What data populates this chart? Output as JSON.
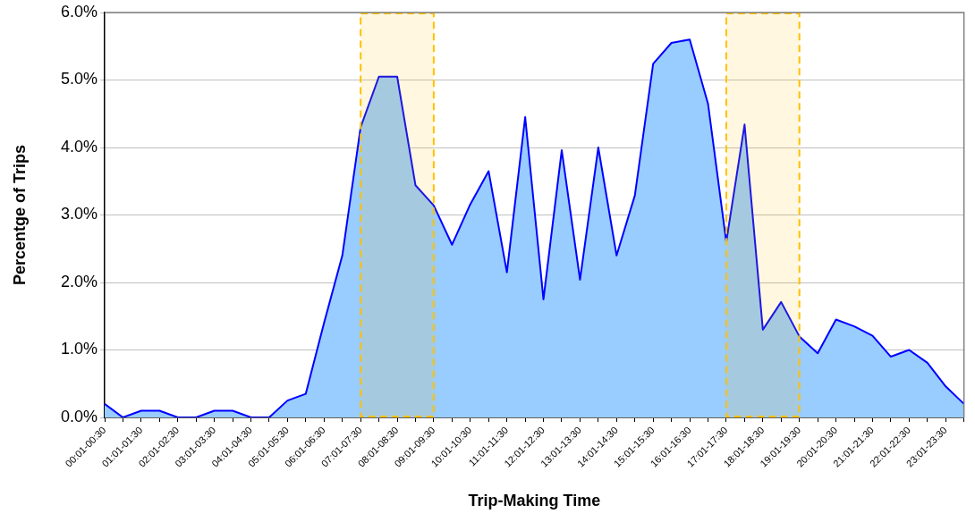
{
  "chart_data": {
    "type": "area",
    "xlabel": "Trip-Making Time",
    "ylabel": "Percentge of Trips",
    "categories": [
      "00:01-00:30",
      null,
      "01:01-01:30",
      null,
      "02:01-02:30",
      null,
      "03:01-03:30",
      null,
      "04:01-04:30",
      null,
      "05:01-05:30",
      null,
      "06:01-06:30",
      null,
      "07:01-07:30",
      null,
      "08:01-08:30",
      null,
      "09:01-09:30",
      null,
      "10:01-10:30",
      null,
      "11:01-11:30",
      null,
      "12:01-12:30",
      null,
      "13:01-13:30",
      null,
      "14:01-14:30",
      null,
      "15:01-15:30",
      null,
      "16:01-16:30",
      null,
      "17:01-17:30",
      null,
      "18:01-18:30",
      null,
      "19:01-19:30",
      null,
      "20:01-20:30",
      null,
      "21:01-21:30",
      null,
      "22:01-22:30",
      null,
      "23:01-23:30",
      null
    ],
    "series": [
      {
        "color": "#0000ff",
        "values": [
          0.2,
          0,
          0.1,
          0.1,
          0,
          0,
          0.1,
          0.1,
          0,
          0,
          0.25,
          0.35,
          1.4,
          2.4,
          4.3,
          5.05,
          5.05,
          3.44,
          3.14,
          2.56,
          3.16,
          3.65,
          2.15,
          4.45,
          1.75,
          3.96,
          2.04,
          4.0,
          2.4,
          3.29,
          5.24,
          5.55,
          5.6,
          4.65,
          2.6,
          4.34,
          1.3,
          1.71,
          1.2,
          0.95,
          1.45,
          1.35,
          1.21,
          0.9,
          1.0,
          0.81,
          0.46,
          0.2
        ]
      }
    ],
    "ylim": [
      0,
      6
    ],
    "yticks": [
      {
        "value": 0,
        "label": "0.0%"
      },
      {
        "value": 1,
        "label": "1.0%"
      },
      {
        "value": 2,
        "label": "2.0%"
      },
      {
        "value": 3,
        "label": "3.0%"
      },
      {
        "value": 4,
        "label": "4.0%"
      },
      {
        "value": 5,
        "label": "5.0%"
      },
      {
        "value": 6,
        "label": "6.0%"
      }
    ],
    "bands": [
      {
        "axis": "x",
        "from": "07:01-07:30",
        "to": "09:01-09:30",
        "color": "#ffc000"
      },
      {
        "axis": "x",
        "from": "17:01-17:30",
        "to": "19:01-19:30",
        "color": "#ffc000"
      }
    ],
    "grid": "y",
    "legend": false,
    "marker": "none",
    "line_style": "solid"
  }
}
